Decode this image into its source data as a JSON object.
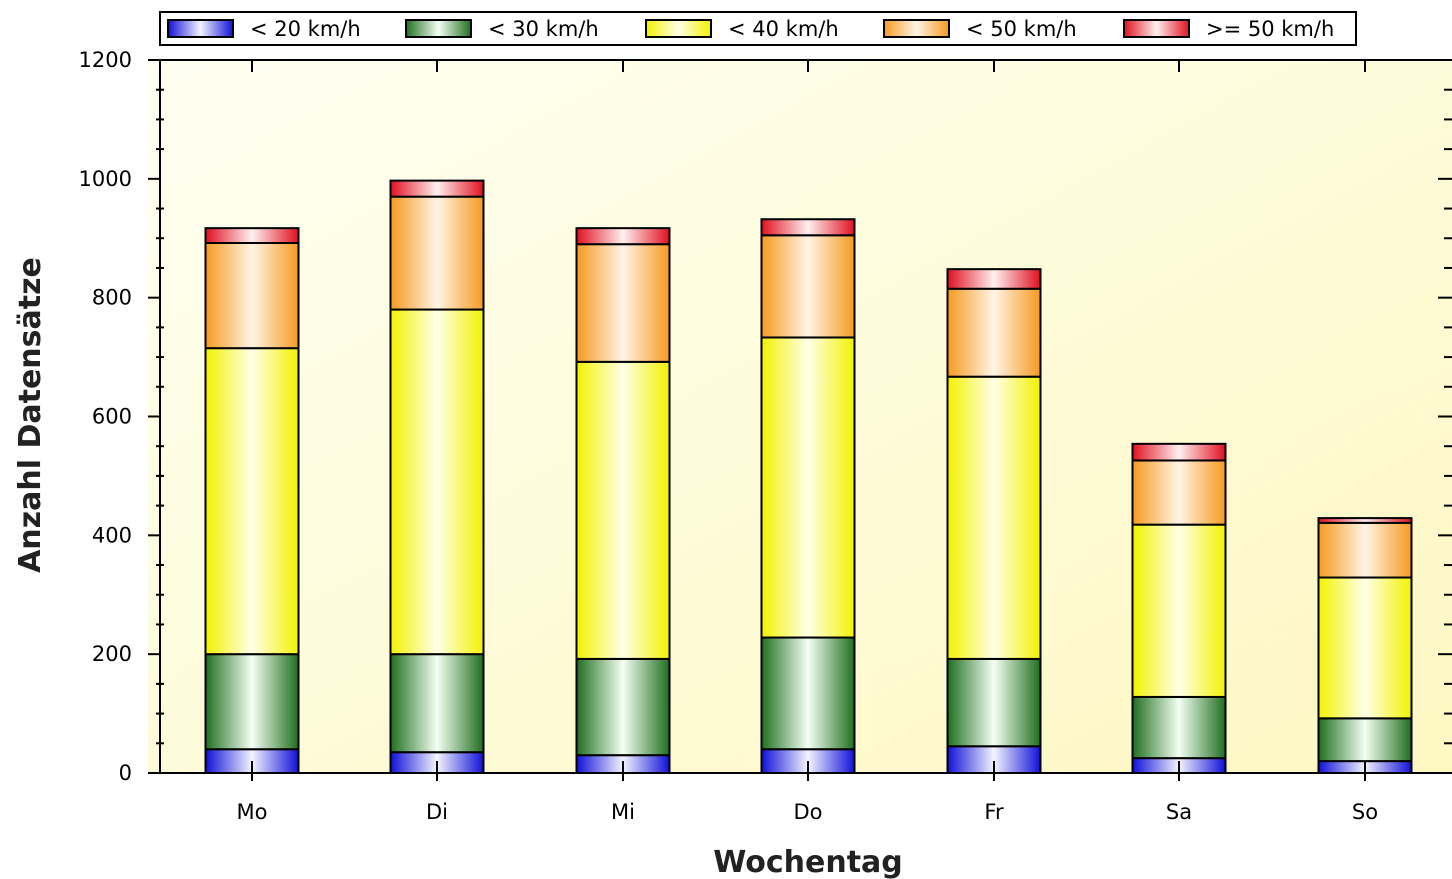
{
  "chart_data": {
    "type": "bar",
    "stacked": true,
    "title": "",
    "xlabel": "Wochentag",
    "ylabel": "Anzahl Datensätze",
    "categories": [
      "Mo",
      "Di",
      "Mi",
      "Do",
      "Fr",
      "Sa",
      "So"
    ],
    "ylim": [
      0,
      1200
    ],
    "yticks": [
      0,
      200,
      400,
      600,
      800,
      1000,
      1200
    ],
    "grid": false,
    "legend_position": "top",
    "series": [
      {
        "name": "< 20 km/h",
        "color": "#2f2fe6",
        "values": [
          40,
          35,
          30,
          40,
          45,
          25,
          20
        ]
      },
      {
        "name": "< 30 km/h",
        "color": "#2e8b2e",
        "values": [
          160,
          165,
          162,
          188,
          147,
          103,
          72
        ]
      },
      {
        "name": "< 40 km/h",
        "color": "#f5f500",
        "values": [
          515,
          580,
          500,
          505,
          475,
          290,
          237
        ]
      },
      {
        "name": "< 50 km/h",
        "color": "#f7a733",
        "values": [
          177,
          190,
          198,
          172,
          148,
          108,
          92
        ]
      },
      {
        "name": ">= 50 km/h",
        "color": "#e8242c",
        "values": [
          25,
          27,
          27,
          27,
          33,
          28,
          8
        ]
      }
    ]
  }
}
